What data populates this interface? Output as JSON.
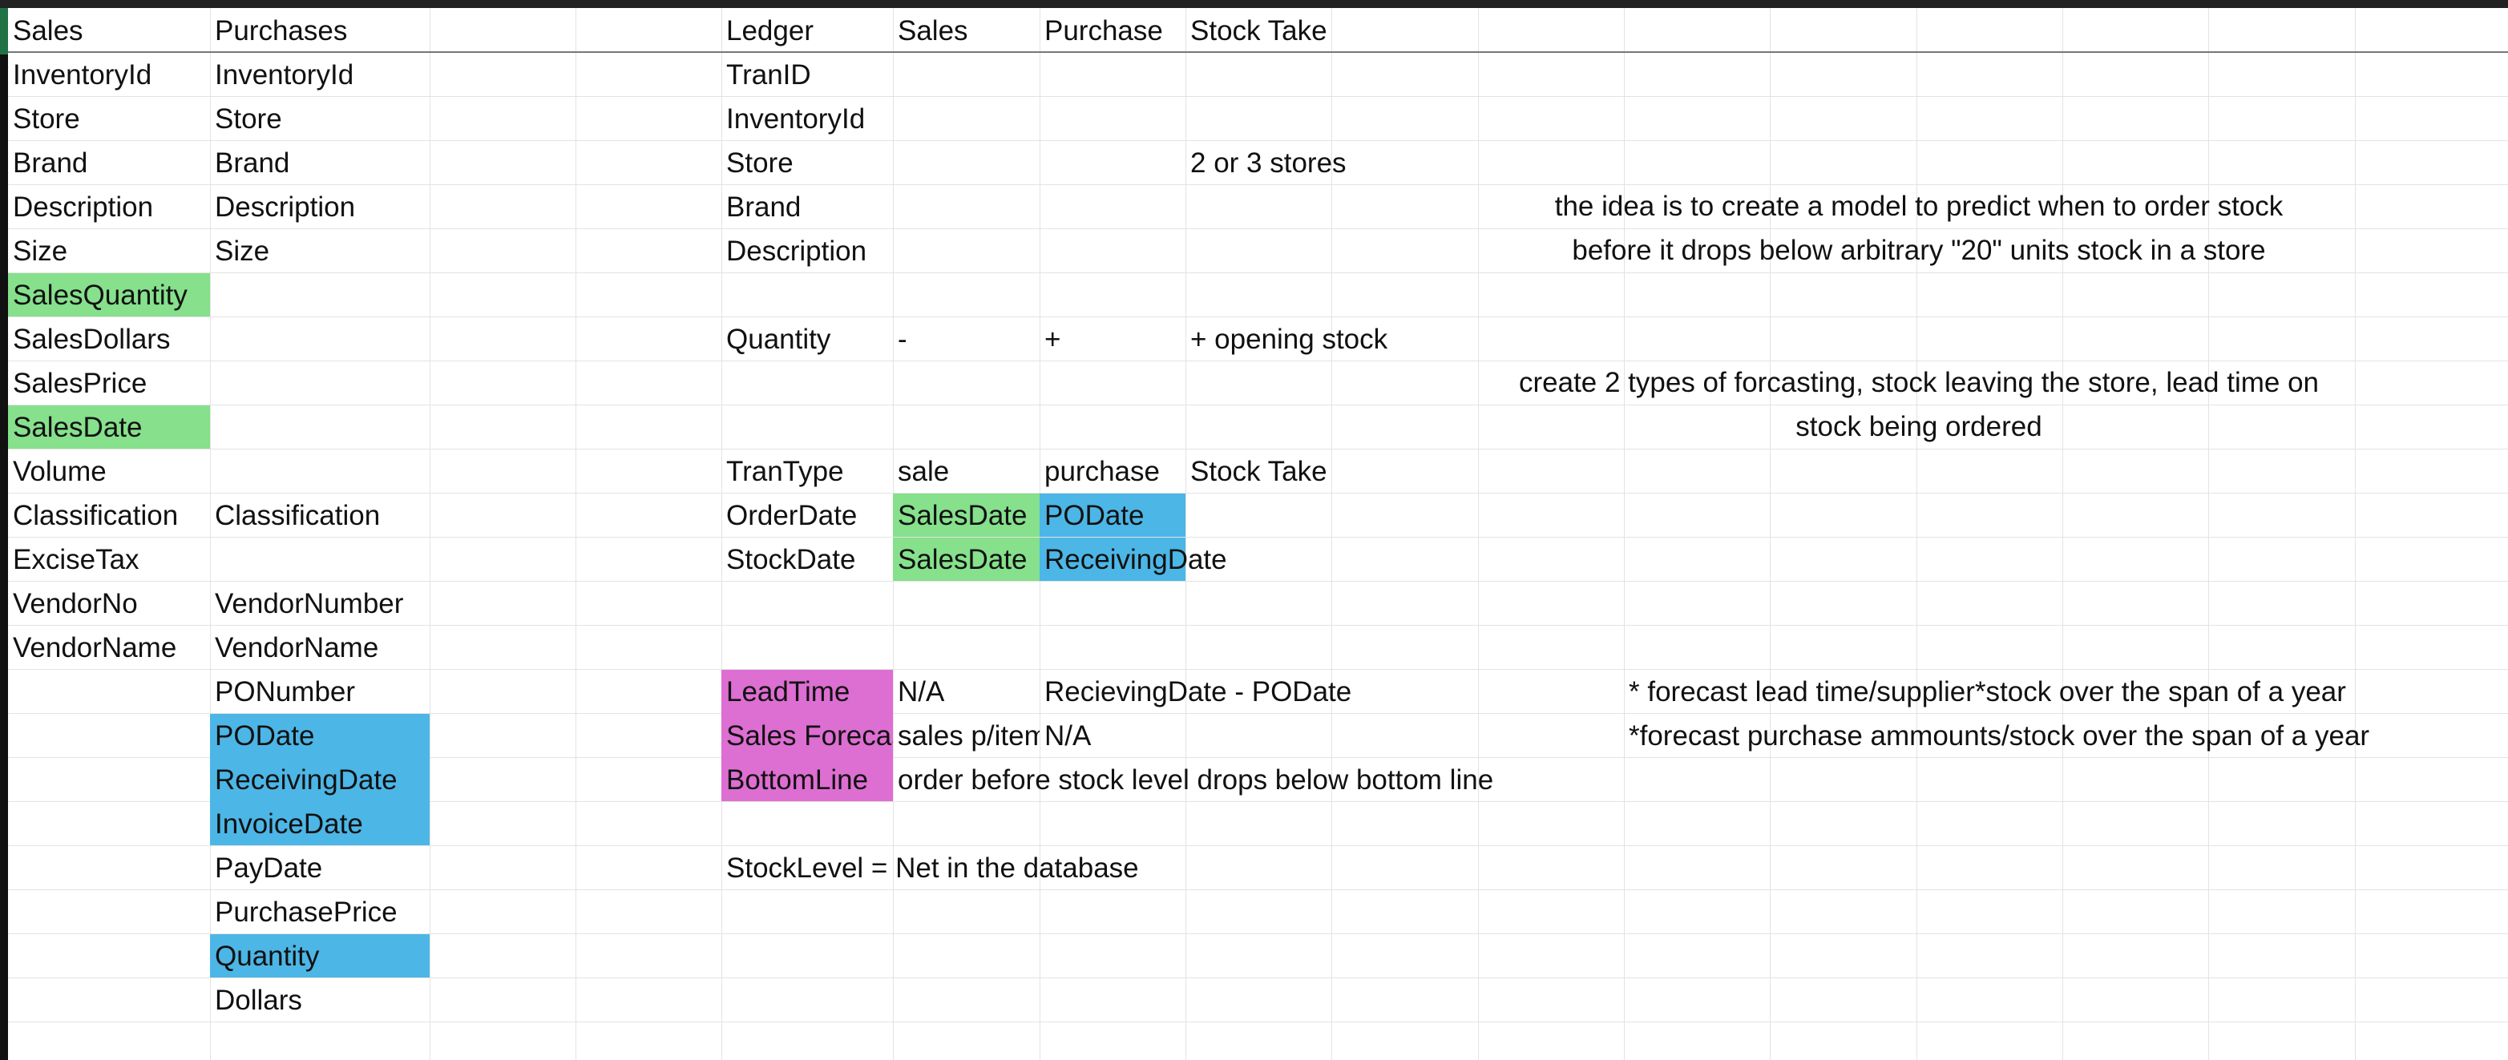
{
  "colors": {
    "green": "#86e08c",
    "blue": "#4cb6e6",
    "pink": "#dd6ed2",
    "gridline": "#e3e3e3",
    "text": "#111111"
  },
  "headers": {
    "sales": "Sales",
    "purchases": "Purchases",
    "ledger": "Ledger",
    "ledger_sales": "Sales",
    "ledger_purchase": "Purchase",
    "ledger_stock_take": "Stock Take"
  },
  "sales_fields": [
    "InventoryId",
    "Store",
    "Brand",
    "Description",
    "Size",
    "SalesQuantity",
    "SalesDollars",
    "SalesPrice",
    "SalesDate",
    "Volume",
    "Classification",
    "ExciseTax",
    "VendorNo",
    "VendorName"
  ],
  "purchase_fields": [
    "InventoryId",
    "Store",
    "Brand",
    "Description",
    "Size",
    "Classification",
    "VendorNumber",
    "VendorName",
    "PONumber",
    "PODate",
    "ReceivingDate",
    "InvoiceDate",
    "PayDate",
    "PurchasePrice",
    "Quantity",
    "Dollars"
  ],
  "ledger": {
    "tran_id": "TranID",
    "inventory_id": "InventoryId",
    "store": "Store",
    "brand": "Brand",
    "description": "Description",
    "quantity": "Quantity",
    "quantity_sales": "-",
    "quantity_purchase": "+",
    "quantity_stock_take": "+ opening stock",
    "store_note": "2 or 3 stores",
    "tran_type": "TranType",
    "tran_type_sales": "sale",
    "tran_type_purchase": "purchase",
    "tran_type_stock_take": "Stock Take",
    "order_date": "OrderDate",
    "order_date_sales": "SalesDate",
    "order_date_purchase": "PODate",
    "stock_date": "StockDate",
    "stock_date_sales": "SalesDate",
    "stock_date_purchase": "ReceivingDate",
    "lead_time": "LeadTime",
    "lead_time_sales": "N/A",
    "lead_time_purchase": "RecievingDate - PODate",
    "sales_forecast": "Sales Forecast",
    "sales_forecast_sales": "sales p/item",
    "sales_forecast_purchase": "N/A",
    "bottom_line": "BottomLine",
    "bottom_line_note": "order before stock level drops below bottom line",
    "stock_level": "StockLevel = Net in the database"
  },
  "notes": {
    "idea_line1": "the idea is to create a model to predict when to order stock",
    "idea_line2": "before it drops below arbitrary \"20\" units stock in a store",
    "forecast_line1": "create 2 types of forcasting, stock leaving the store, lead time on",
    "forecast_line2": "stock being ordered",
    "lead_forecast": "* forecast lead time/supplier*stock over the span of a year",
    "purchase_forecast": "*forecast purchase ammounts/stock over the span of a year"
  }
}
